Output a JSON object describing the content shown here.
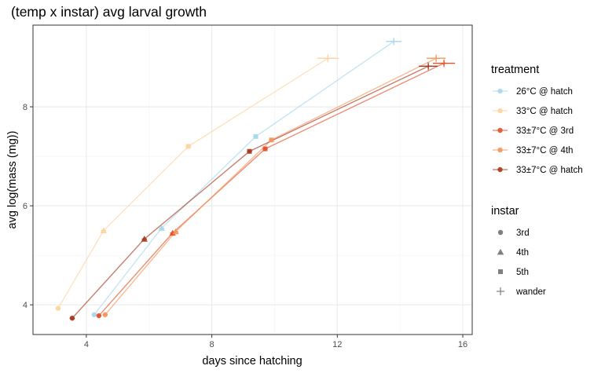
{
  "chart_data": {
    "type": "line",
    "title": "(temp x instar) avg larval growth",
    "xlabel": "days since hatching",
    "ylabel": "avg log(mass (mg))",
    "xlim": [
      2.3,
      16.3
    ],
    "ylim": [
      3.4,
      9.65
    ],
    "x_ticks": [
      4,
      8,
      12,
      16
    ],
    "y_ticks": [
      4,
      6,
      8
    ],
    "grid": true,
    "legend_position": "right",
    "color_legend": {
      "title": "treatment",
      "entries": [
        {
          "label": "26°C @ hatch",
          "color": "#a6d8ea",
          "alpha": 0.6
        },
        {
          "label": "33°C @ hatch",
          "color": "#fdd49e",
          "alpha": 0.6
        },
        {
          "label": "33±7°C @ 3rd",
          "color": "#e3522b",
          "alpha": 0.6
        },
        {
          "label": "33±7°C @ 4th",
          "color": "#f4965a",
          "alpha": 0.6
        },
        {
          "label": "33±7°C @ hatch",
          "color": "#a8381e",
          "alpha": 0.6
        }
      ]
    },
    "shape_legend": {
      "title": "instar",
      "entries": [
        {
          "label": "3rd",
          "shape": "circle"
        },
        {
          "label": "4th",
          "shape": "triangle"
        },
        {
          "label": "5th",
          "shape": "square"
        },
        {
          "label": "wander",
          "shape": "plus"
        }
      ]
    },
    "series": [
      {
        "name": "26°C @ hatch",
        "color": "#a6d8ea",
        "points": [
          {
            "x": 4.25,
            "y": 3.8,
            "instar": "3rd"
          },
          {
            "x": 6.4,
            "y": 5.55,
            "instar": "4th"
          },
          {
            "x": 9.4,
            "y": 7.4,
            "instar": "5th"
          },
          {
            "x": 13.8,
            "y": 9.32,
            "instar": "wander",
            "xerr": 0.25,
            "yerr": 0.05
          }
        ]
      },
      {
        "name": "33°C @ hatch",
        "color": "#fdd49e",
        "points": [
          {
            "x": 3.1,
            "y": 3.93,
            "instar": "3rd"
          },
          {
            "x": 4.55,
            "y": 5.5,
            "instar": "4th"
          },
          {
            "x": 7.25,
            "y": 7.2,
            "instar": "5th"
          },
          {
            "x": 11.7,
            "y": 8.98,
            "instar": "wander",
            "xerr": 0.35,
            "yerr": 0.05
          }
        ]
      },
      {
        "name": "33±7°C @ 3rd",
        "color": "#e3522b",
        "points": [
          {
            "x": 4.4,
            "y": 3.78,
            "instar": "3rd"
          },
          {
            "x": 6.75,
            "y": 5.45,
            "instar": "4th"
          },
          {
            "x": 9.7,
            "y": 7.15,
            "instar": "5th"
          },
          {
            "x": 15.4,
            "y": 8.88,
            "instar": "wander",
            "xerr": 0.35,
            "yerr": 0.05
          }
        ]
      },
      {
        "name": "33±7°C @ 4th",
        "color": "#f4965a",
        "points": [
          {
            "x": 4.6,
            "y": 3.8,
            "instar": "3rd"
          },
          {
            "x": 6.85,
            "y": 5.48,
            "instar": "4th"
          },
          {
            "x": 9.9,
            "y": 7.33,
            "instar": "5th"
          },
          {
            "x": 15.15,
            "y": 8.98,
            "instar": "wander",
            "xerr": 0.3,
            "yerr": 0.05
          }
        ]
      },
      {
        "name": "33±7°C @ hatch",
        "color": "#a8381e",
        "points": [
          {
            "x": 3.55,
            "y": 3.73,
            "instar": "3rd"
          },
          {
            "x": 5.85,
            "y": 5.33,
            "instar": "4th"
          },
          {
            "x": 9.2,
            "y": 7.1,
            "instar": "5th"
          },
          {
            "x": 14.9,
            "y": 8.82,
            "instar": "wander",
            "xerr": 0.3,
            "yerr": 0.05
          }
        ]
      }
    ]
  }
}
